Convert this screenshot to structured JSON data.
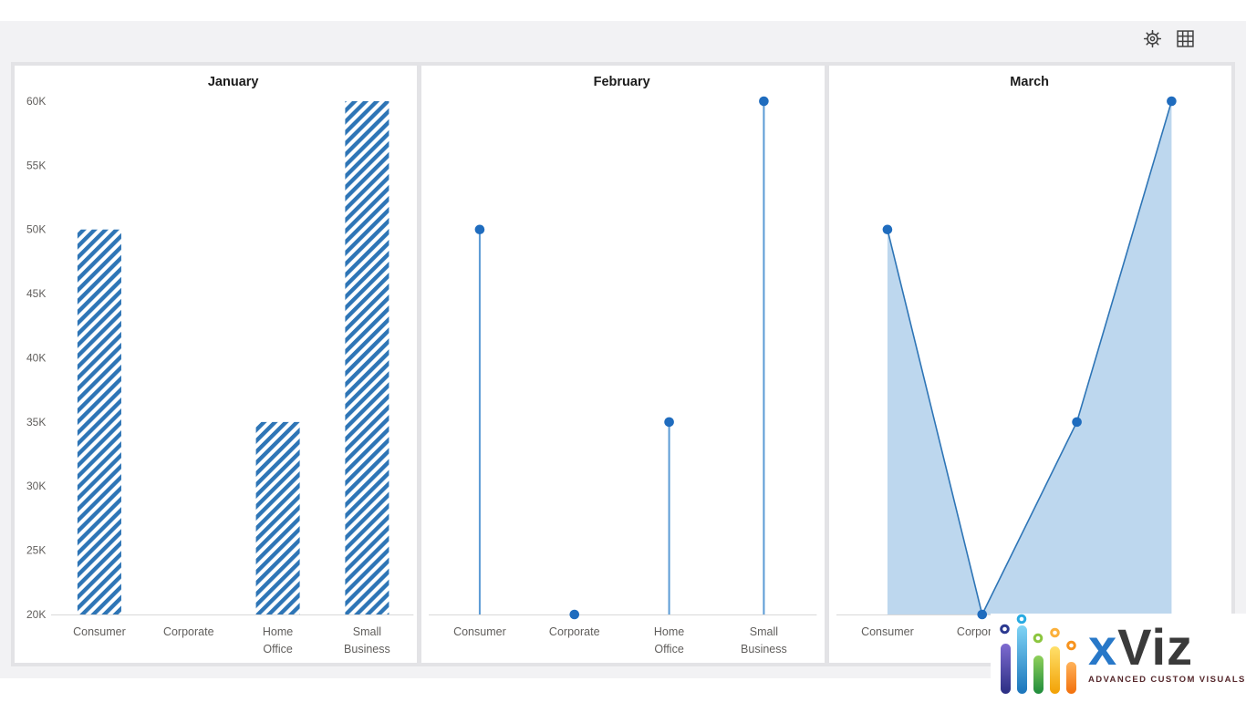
{
  "toolbar": {
    "icons": [
      {
        "name": "settings-gear",
        "interactable": true
      },
      {
        "name": "grid-table",
        "interactable": true
      }
    ]
  },
  "colors": {
    "accent_blue": "#2e75b6",
    "stem_blue": "#5b9bd5",
    "dot_blue": "#1f6cbe",
    "area_fill": "#bdd7ee",
    "axis_line": "#d8d8d8",
    "label_gray": "#605e5c",
    "title_dark": "#1c1c1c",
    "canvas_gray": "#f2f2f4",
    "frame_border": "#e3e3e6"
  },
  "category_label_lines": [
    [
      "Consumer"
    ],
    [
      "Corporate"
    ],
    [
      "Home",
      "Office"
    ],
    [
      "Small",
      "Business"
    ]
  ],
  "chart_data": [
    {
      "type": "bar",
      "bar_style": "diagonal-hatch",
      "title": "January",
      "categories": [
        "Consumer",
        "Corporate",
        "Home Office",
        "Small Business"
      ],
      "values": [
        50000,
        20000,
        35000,
        60000
      ],
      "ylim": [
        20000,
        60000
      ],
      "ytick_labels": [
        "60K",
        "55K",
        "50K",
        "45K",
        "40K",
        "35K",
        "30K",
        "25K",
        "20K"
      ],
      "ytick_values": [
        60000,
        55000,
        50000,
        45000,
        40000,
        35000,
        30000,
        25000,
        20000
      ],
      "grid": false,
      "legend": false,
      "show_y_axis": true
    },
    {
      "type": "lollipop",
      "title": "February",
      "categories": [
        "Consumer",
        "Corporate",
        "Home Office",
        "Small Business"
      ],
      "values": [
        50000,
        20000,
        35000,
        60000
      ],
      "ylim": [
        20000,
        60000
      ],
      "grid": false,
      "legend": false,
      "show_y_axis": false
    },
    {
      "type": "area",
      "title": "March",
      "categories": [
        "Consumer",
        "Corporate",
        "Home Office",
        "Small Business"
      ],
      "values": [
        50000,
        20000,
        35000,
        60000
      ],
      "ylim": [
        20000,
        60000
      ],
      "grid": false,
      "legend": false,
      "show_y_axis": false
    }
  ],
  "logo": {
    "brand_x": "x",
    "brand_viz": "Viz",
    "tagline": "ADVANCED CUSTOM VISUALS",
    "bar_colors": [
      "#4b3fa5",
      "#2a9fd8",
      "#2e8f3c",
      "#f5b71c",
      "#f2830c"
    ]
  }
}
